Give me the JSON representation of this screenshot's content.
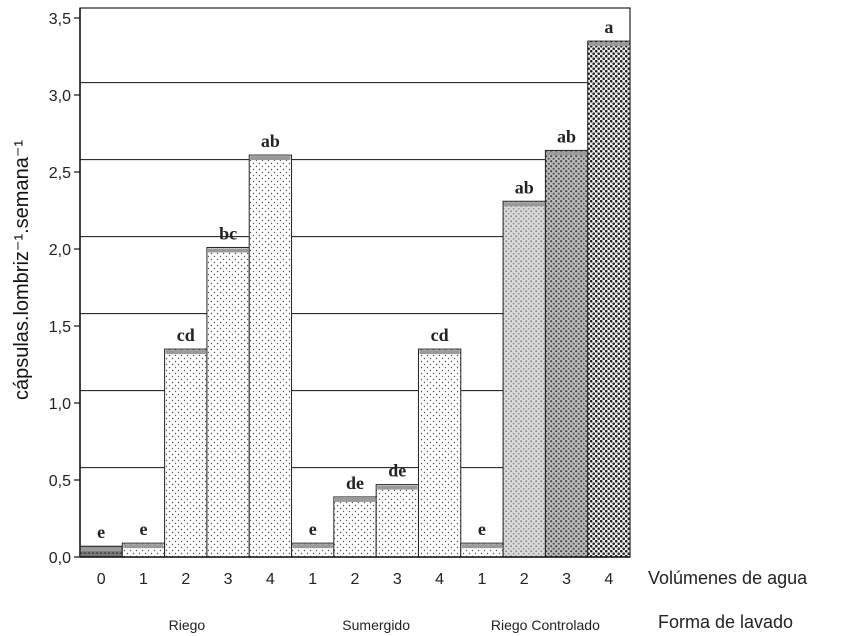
{
  "chart_data": {
    "type": "bar",
    "ylabel": "cápsulas.lombriz⁻¹.semana⁻¹",
    "xlabel_levels": "Volúmenes de agua",
    "xlabel_groups": "Forma de lavado",
    "ylim": [
      0,
      3.5
    ],
    "yticks": [
      "0,0",
      "0,5",
      "1,0",
      "1,5",
      "2,0",
      "2,5",
      "3,0",
      "3,5"
    ],
    "gridlines": [
      0.58,
      1.08,
      1.58,
      2.08,
      2.58,
      3.08
    ],
    "bars": [
      {
        "group": "",
        "level": "0",
        "value": 0.07,
        "letters": "e",
        "pattern": "dark"
      },
      {
        "group": "Riego",
        "level": "1",
        "value": 0.09,
        "letters": "e",
        "pattern": "fine"
      },
      {
        "group": "Riego",
        "level": "2",
        "value": 1.35,
        "letters": "cd",
        "pattern": "fine"
      },
      {
        "group": "Riego",
        "level": "3",
        "value": 2.01,
        "letters": "bc",
        "pattern": "fine"
      },
      {
        "group": "Riego",
        "level": "4",
        "value": 2.61,
        "letters": "ab",
        "pattern": "fine"
      },
      {
        "group": "Sumergido",
        "level": "1",
        "value": 0.09,
        "letters": "e",
        "pattern": "fine"
      },
      {
        "group": "Sumergido",
        "level": "2",
        "value": 0.39,
        "letters": "de",
        "pattern": "fine"
      },
      {
        "group": "Sumergido",
        "level": "3",
        "value": 0.47,
        "letters": "de",
        "pattern": "fine"
      },
      {
        "group": "Sumergido",
        "level": "4",
        "value": 1.35,
        "letters": "cd",
        "pattern": "fine"
      },
      {
        "group": "Riego Controlado",
        "level": "1",
        "value": 0.09,
        "letters": "e",
        "pattern": "fine"
      },
      {
        "group": "Riego Controlado",
        "level": "2",
        "value": 2.31,
        "letters": "ab",
        "pattern": "light"
      },
      {
        "group": "Riego Controlado",
        "level": "3",
        "value": 2.64,
        "letters": "ab",
        "pattern": "medium"
      },
      {
        "group": "Riego Controlado",
        "level": "4",
        "value": 3.35,
        "letters": "a",
        "pattern": "dense"
      }
    ],
    "groups": [
      "Riego",
      "Sumergido",
      "Riego Controlado"
    ],
    "group_spans": [
      [
        1,
        4
      ],
      [
        5,
        8
      ],
      [
        9,
        12
      ]
    ]
  }
}
